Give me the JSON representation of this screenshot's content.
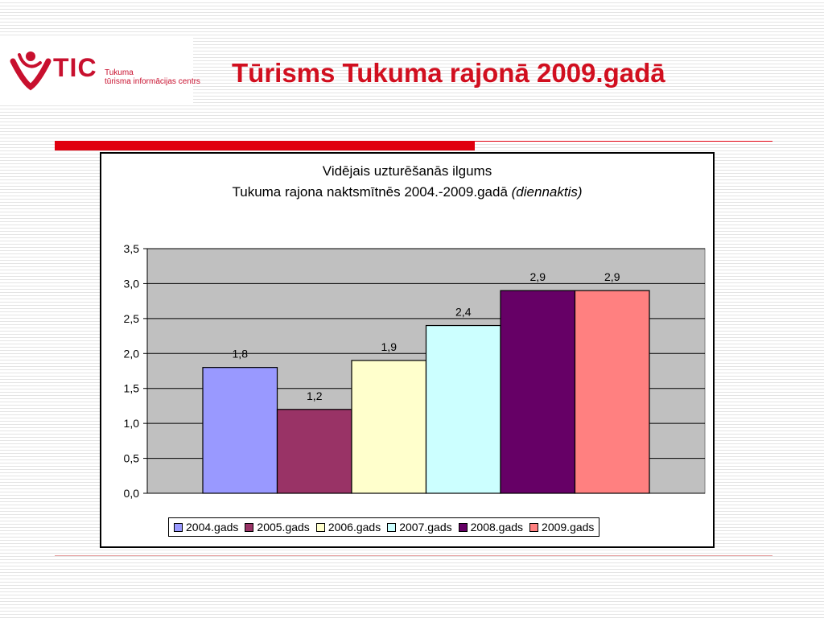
{
  "logo": {
    "brand": "TIC",
    "line1": "Tukuma",
    "line2": "tūrisma informācijas centrs"
  },
  "slide": {
    "title": "Tūrisms Tukuma rajonā 2009.gadā"
  },
  "colors": {
    "title": "#d10f1f",
    "accent_rule": "#e0000f",
    "plot_bg": "#c0c0c0"
  },
  "chart_data": {
    "type": "bar",
    "title_line1": "Vidējais uzturēšanās ilgums",
    "title_line2_main": "Tukuma rajona naktsmītnēs 2004.-2009.gadā",
    "title_line2_unit": "(diennaktis)",
    "ylim": [
      0,
      3.5
    ],
    "yticks": [
      "0,0",
      "0,5",
      "1,0",
      "1,5",
      "2,0",
      "2,5",
      "3,0",
      "3,5"
    ],
    "grid": true,
    "legend_position": "bottom",
    "series": [
      {
        "name": "2004.gads",
        "value": 1.8,
        "label": "1,8",
        "color": "#9999ff"
      },
      {
        "name": "2005.gads",
        "value": 1.2,
        "label": "1,2",
        "color": "#993366"
      },
      {
        "name": "2006.gads",
        "value": 1.9,
        "label": "1,9",
        "color": "#ffffcc"
      },
      {
        "name": "2007.gads",
        "value": 2.4,
        "label": "2,4",
        "color": "#ccffff"
      },
      {
        "name": "2008.gads",
        "value": 2.9,
        "label": "2,9",
        "color": "#660066"
      },
      {
        "name": "2009.gads",
        "value": 2.9,
        "label": "2,9",
        "color": "#ff8080"
      }
    ]
  }
}
